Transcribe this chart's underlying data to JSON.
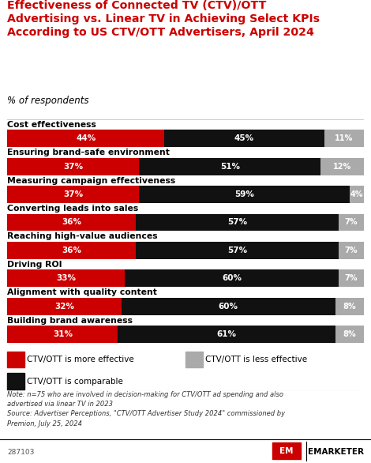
{
  "title": "Effectiveness of Connected TV (CTV)/OTT\nAdvertising vs. Linear TV in Achieving Select KPIs\nAccording to US CTV/OTT Advertisers, April 2024",
  "subtitle": "% of respondents",
  "categories": [
    "Cost effectiveness",
    "Ensuring brand-safe environment",
    "Measuring campaign effectiveness",
    "Converting leads into sales",
    "Reaching high-value audiences",
    "Driving ROI",
    "Alignment with quality content",
    "Building brand awareness"
  ],
  "more_effective": [
    44,
    37,
    37,
    36,
    36,
    33,
    32,
    31
  ],
  "comparable": [
    45,
    51,
    59,
    57,
    57,
    60,
    60,
    61
  ],
  "less_effective": [
    11,
    12,
    4,
    7,
    7,
    7,
    8,
    8
  ],
  "color_more": "#cc0000",
  "color_comparable": "#111111",
  "color_less": "#aaaaaa",
  "note": "Note: n=75 who are involved in decision-making for CTV/OTT ad spending and also\nadvertised via linear TV in 2023\nSource: Advertiser Perceptions, \"CTV/OTT Advertiser Study 2024\" commissioned by\nPremion, July 25, 2024",
  "footer_id": "287103",
  "bg_color": "#ffffff",
  "title_color": "#cc0000",
  "bar_height": 0.62
}
